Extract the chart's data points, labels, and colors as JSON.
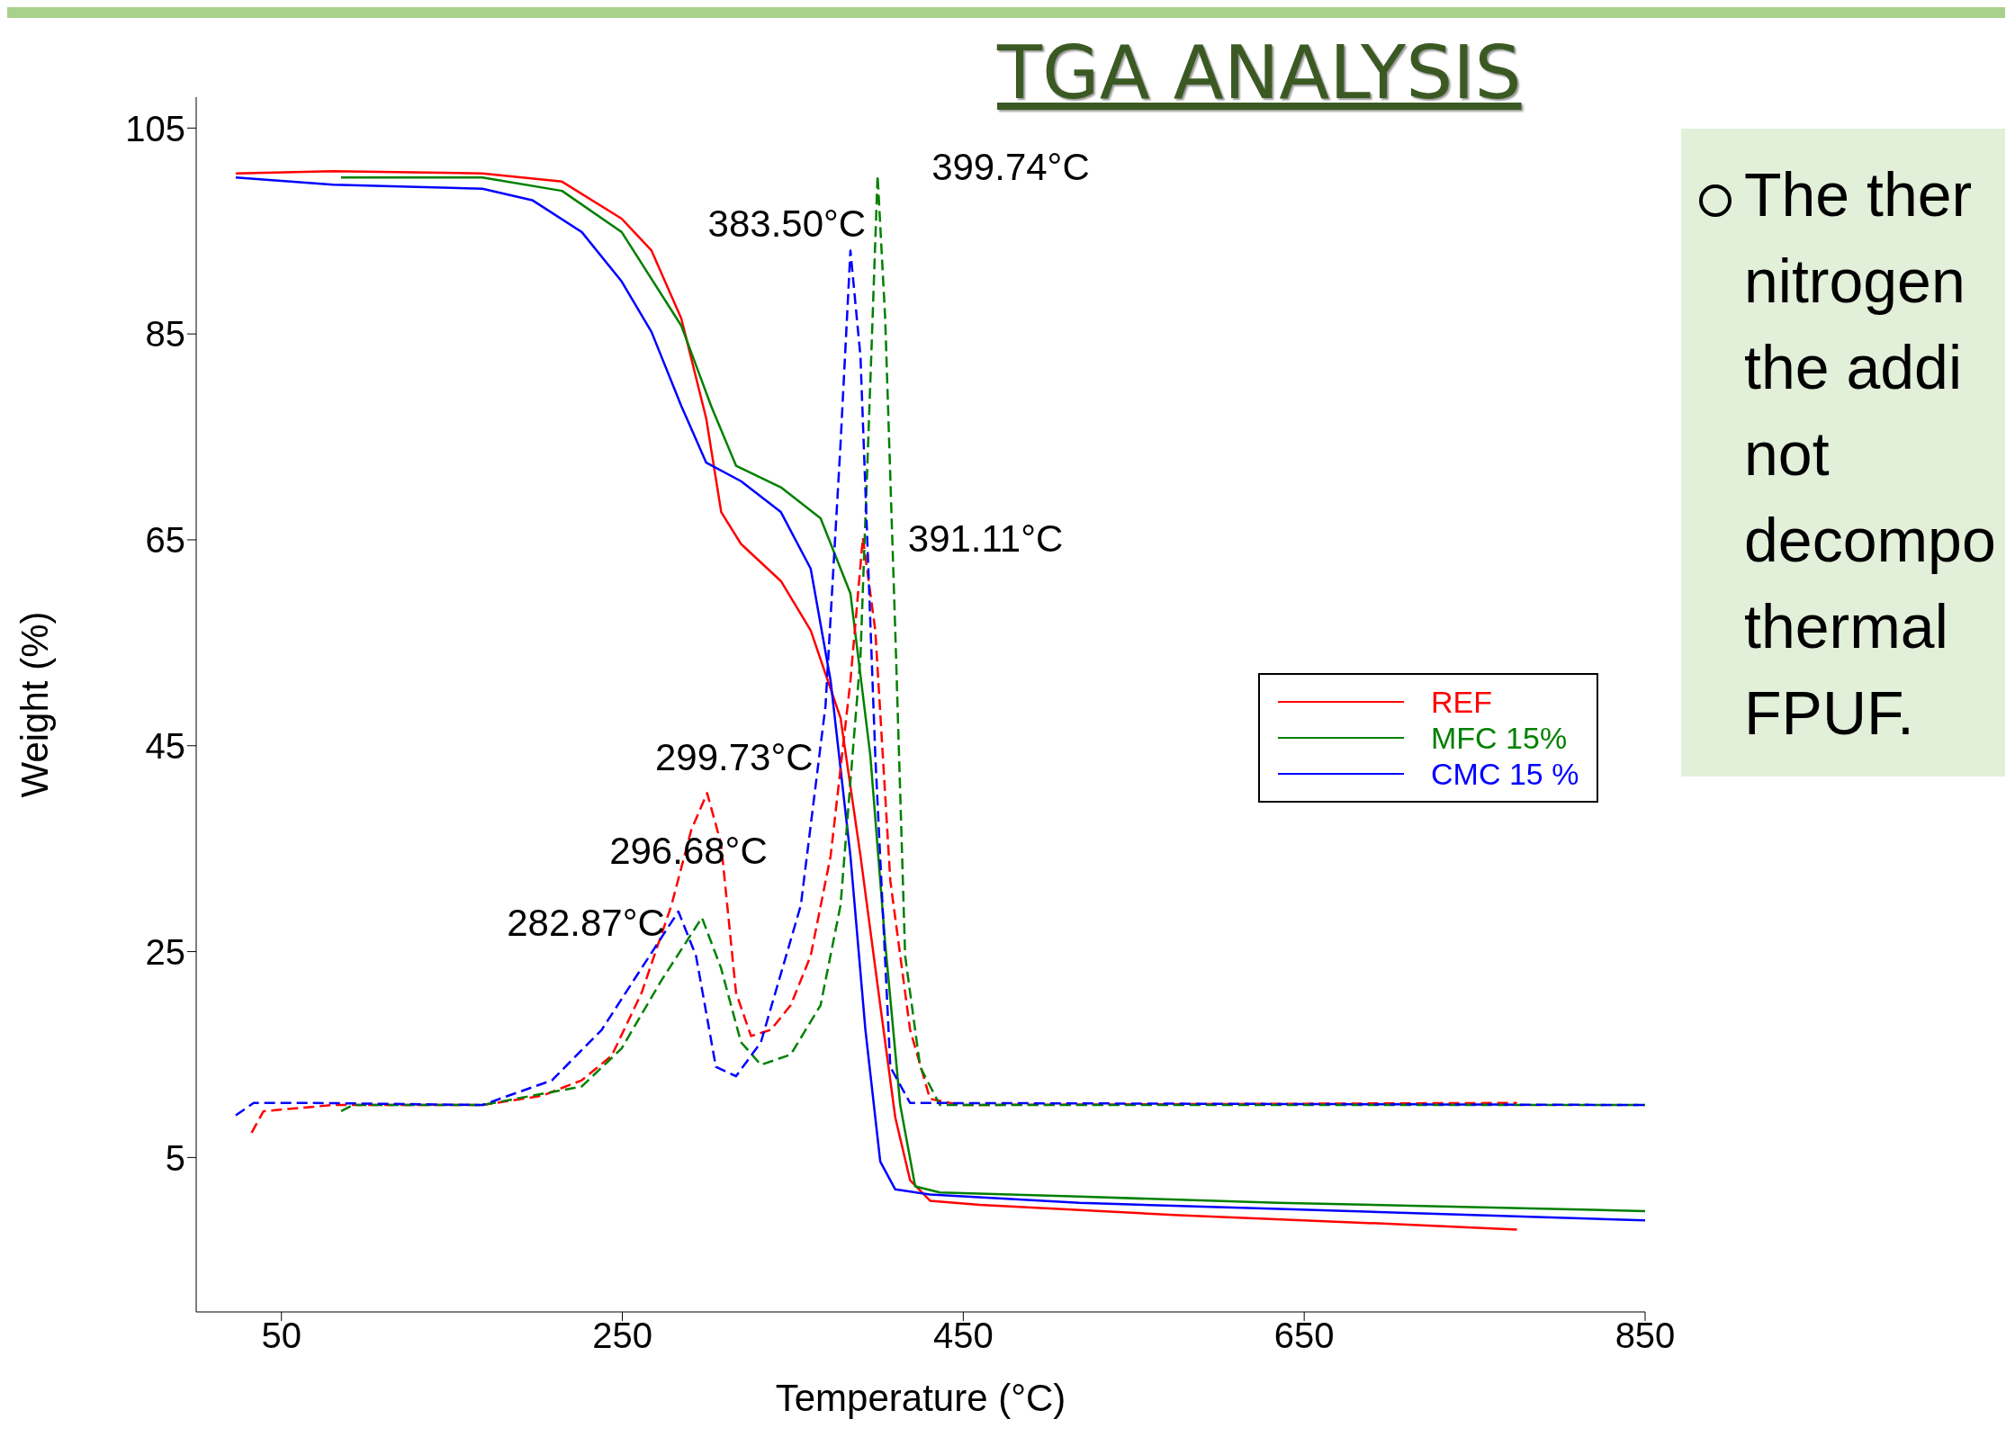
{
  "chart_data": {
    "type": "line",
    "title": "TGA ANALYSIS",
    "xlabel": "Temperature (°C)",
    "ylabel": "Weight (%)",
    "xlim": [
      0,
      850
    ],
    "xticks": [
      50,
      250,
      450,
      650,
      850
    ],
    "ylim": [
      -10,
      108
    ],
    "yticks": [
      5,
      25,
      45,
      65,
      85,
      105
    ],
    "legend": "right",
    "marker": "none",
    "series": [
      {
        "name": "REF",
        "color": "#ff0000",
        "line_style": "solid",
        "x": [
          23.2,
          80.3,
          167.9,
          214.6,
          249.6,
          267.1,
          284.6,
          299.2,
          308,
          319.6,
          343,
          360.5,
          378,
          389.7,
          401.3,
          410.1,
          418.8,
          430.5,
          459.7,
          576.4,
          693.1,
          774.8
        ],
        "values": [
          100.6,
          100.8,
          100.6,
          99.8,
          96.2,
          93.1,
          86.5,
          76.8,
          67.7,
          64.6,
          61,
          56.2,
          47.7,
          34.3,
          19.8,
          8.9,
          2.8,
          0.8,
          0.4,
          -0.6,
          -1.4,
          -2
        ]
      },
      {
        "name": "MFC 15%",
        "color": "#008000",
        "line_style": "solid",
        "x": [
          85,
          167.9,
          214.6,
          249.6,
          284.6,
          302.1,
          316.7,
          343,
          366.3,
          383.8,
          395.5,
          404.2,
          413,
          421.8,
          436.3,
          518,
          634.8,
          850
        ],
        "values": [
          100.2,
          100.2,
          98.9,
          94.9,
          85.8,
          78,
          72.2,
          70.1,
          67.1,
          59.8,
          44,
          25.8,
          10.1,
          2.2,
          1.6,
          1.2,
          0.6,
          -0.2
        ]
      },
      {
        "name": "CMC 15 %",
        "color": "#0000ff",
        "line_style": "solid",
        "x": [
          23.2,
          80.3,
          167.9,
          197.1,
          226.2,
          249.6,
          267.1,
          284.6,
          299.2,
          319.6,
          343,
          360.5,
          372.2,
          383.8,
          392.6,
          401.3,
          410.1,
          430.5,
          518,
          634.8,
          850
        ],
        "values": [
          100.2,
          99.5,
          99.1,
          98,
          94.9,
          90.1,
          85.2,
          78,
          72.5,
          70.7,
          67.7,
          62.2,
          51.3,
          34.3,
          17.4,
          4.6,
          1.9,
          1.4,
          0.6,
          0,
          -1.1
        ]
      },
      {
        "color": "#ff0000",
        "line_style": "dashed",
        "x": [
          32.5,
          39.5,
          80.3,
          167.9,
          202.9,
          226.2,
          243.8,
          261.3,
          278.8,
          290.4,
          299.73,
          307.9,
          316.7,
          325.5,
          337.1,
          348.8,
          360.5,
          372.2,
          383.8,
          391.11,
          398.4,
          407.2,
          418.8,
          430.5,
          448,
          774.8
        ],
        "values": [
          7.4,
          9.5,
          10.1,
          10.1,
          11,
          12.5,
          14.9,
          21,
          29.5,
          36.8,
          40.4,
          35.5,
          21,
          16.8,
          17.4,
          19.8,
          24.6,
          34.3,
          51.3,
          65.2,
          56.2,
          31.9,
          17.4,
          10.7,
          10.1,
          10.3
        ]
      },
      {
        "color": "#008000",
        "line_style": "dashed",
        "x": [
          85,
          92,
          167.9,
          226.2,
          249.6,
          272.9,
          296.68,
          307.9,
          319.6,
          331.3,
          348.8,
          366.3,
          378,
          389.7,
          395.5,
          399.74,
          404.2,
          410.1,
          415.9,
          424.7,
          436.3,
          850
        ],
        "values": [
          9.5,
          10.1,
          10.1,
          11.9,
          15.6,
          22.2,
          28.3,
          23.4,
          16.2,
          14,
          15,
          19.8,
          29.5,
          53.7,
          80.4,
          100.4,
          86.5,
          56.2,
          24.6,
          13.8,
          10.1,
          10.1
        ]
      },
      {
        "color": "#0000ff",
        "line_style": "dashed",
        "x": [
          23.2,
          33.7,
          68.7,
          167.9,
          208.7,
          237.9,
          261.3,
          282.87,
          293.2,
          304.9,
          316.7,
          331.3,
          354.7,
          369.2,
          378,
          383.8,
          389.7,
          398.4,
          407.2,
          418.8,
          850
        ],
        "values": [
          9.1,
          10.3,
          10.3,
          10.1,
          12.5,
          17.4,
          23.4,
          28.9,
          24.6,
          13.8,
          12.9,
          16.2,
          29.5,
          48.9,
          74.3,
          93.1,
          82.8,
          44,
          13.8,
          10.3,
          10.1
        ]
      }
    ],
    "annotations": [
      {
        "text": "299.73°C",
        "x": 299.73,
        "y": 40.4
      },
      {
        "text": "296.68°C",
        "x": 296.68,
        "y": 28.3
      },
      {
        "text": "282.87°C",
        "x": 282.87,
        "y": 28.9
      },
      {
        "text": "383.50°C",
        "x": 383.5,
        "y": 93.1
      },
      {
        "text": "399.74°C",
        "x": 399.74,
        "y": 100.4
      },
      {
        "text": "391.11°C",
        "x": 391.11,
        "y": 65.2
      },
      "The ther\nnitrogen\nthe addi\nnot\ndecompo\nthermal\nFPUF."
    ]
  }
}
